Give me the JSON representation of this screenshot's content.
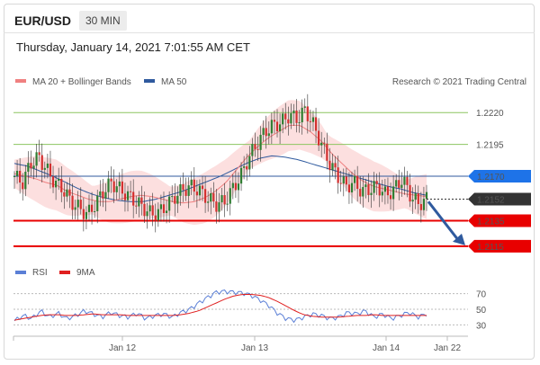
{
  "header": {
    "symbol": "EUR/USD",
    "interval": "30 MIN",
    "timestamp": "Thursday, January 14, 2021 7:01:55 AM CET"
  },
  "legend": {
    "ma20": "MA 20 + Bollinger Bands",
    "ma50": "MA 50",
    "credit": "Research © 2021 Trading Central"
  },
  "colors": {
    "ma20": "#f08080",
    "ma50": "#2f5a9e",
    "support": "#e80000",
    "resistance_green": "#8cc560",
    "bullish": "#2e7d32",
    "bearish": "#d32f2f",
    "current": "#333333",
    "rsi": "#5b7fd6",
    "rsi_ma": "#e02020"
  },
  "chart_data": [
    {
      "type": "line",
      "title": "EUR/USD 30 MIN",
      "x_ticks": [
        "Jan 12",
        "Jan 13",
        "Jan 14",
        "Jan 22"
      ],
      "ylim": [
        1.2105,
        1.2235
      ],
      "levels": [
        {
          "value": 1.222,
          "label": "1.2220",
          "style": "green-line"
        },
        {
          "value": 1.2195,
          "label": "1.2195",
          "style": "green-line"
        },
        {
          "value": 1.217,
          "label": "1.2170",
          "style": "blue-marker"
        },
        {
          "value": 1.2152,
          "label": "1.2152",
          "style": "current-price"
        },
        {
          "value": 1.2135,
          "label": "1.2135",
          "style": "red-line"
        },
        {
          "value": 1.2115,
          "label": "1.2115",
          "style": "red-line"
        }
      ],
      "price_path": [
        1.217,
        1.2165,
        1.218,
        1.2185,
        1.2175,
        1.2165,
        1.216,
        1.215,
        1.2145,
        1.214,
        1.2148,
        1.2158,
        1.2165,
        1.216,
        1.2155,
        1.215,
        1.2145,
        1.214,
        1.2142,
        1.2148,
        1.2155,
        1.216,
        1.2162,
        1.2158,
        1.2152,
        1.2148,
        1.215,
        1.216,
        1.217,
        1.2185,
        1.2195,
        1.2205,
        1.221,
        1.2212,
        1.2218,
        1.2215,
        1.2222,
        1.221,
        1.2195,
        1.218,
        1.217,
        1.2162,
        1.2165,
        1.2158,
        1.216,
        1.2162,
        1.2155,
        1.216,
        1.2168,
        1.2155,
        1.2148,
        1.2152
      ],
      "ma20_path": [
        1.2172,
        1.217,
        1.2168,
        1.2165,
        1.2163,
        1.2158,
        1.2155,
        1.2152,
        1.215,
        1.215,
        1.2152,
        1.2154,
        1.2155,
        1.2154,
        1.2152,
        1.215,
        1.2149,
        1.215,
        1.2153,
        1.2158,
        1.2165,
        1.2175,
        1.2185,
        1.2193,
        1.22,
        1.2205,
        1.221,
        1.221,
        1.2205,
        1.2198,
        1.2188,
        1.218,
        1.2172,
        1.2166,
        1.2162,
        1.216,
        1.2158,
        1.2156,
        1.2155,
        1.2154
      ],
      "ma50_path": [
        1.218,
        1.2178,
        1.2174,
        1.217,
        1.2165,
        1.216,
        1.2156,
        1.2153,
        1.2151,
        1.215,
        1.215,
        1.2152,
        1.2155,
        1.2158,
        1.2162,
        1.2166,
        1.217,
        1.2175,
        1.218,
        1.2184,
        1.2186,
        1.2185,
        1.2183,
        1.218,
        1.2177,
        1.2174,
        1.2171,
        1.2168,
        1.2165,
        1.2162,
        1.216,
        1.2157,
        1.2155
      ],
      "forecast_target": 1.2115
    },
    {
      "type": "line",
      "legend": [
        "RSI",
        "9MA"
      ],
      "y_ticks": [
        70,
        50,
        30
      ],
      "ylim": [
        20,
        80
      ],
      "series": [
        {
          "name": "RSI",
          "values": [
            35,
            42,
            38,
            48,
            40,
            45,
            38,
            42,
            48,
            44,
            40,
            46,
            42,
            40,
            45,
            38,
            42,
            44,
            40,
            46,
            50,
            58,
            65,
            72,
            73,
            72,
            71,
            68,
            62,
            55,
            45,
            38,
            36,
            40,
            44,
            42,
            38,
            40,
            46,
            44,
            48,
            40,
            44,
            38,
            42,
            46,
            40,
            44
          ]
        },
        {
          "name": "9MA",
          "values": [
            36,
            38,
            40,
            42,
            43,
            43,
            42,
            42,
            43,
            44,
            43,
            43,
            43,
            42,
            42,
            42,
            42,
            42,
            42,
            43,
            45,
            48,
            53,
            58,
            63,
            67,
            69,
            69,
            68,
            65,
            60,
            54,
            48,
            43,
            41,
            40,
            40,
            40,
            41,
            42,
            42,
            43,
            42,
            42,
            42,
            42,
            42,
            42
          ]
        }
      ]
    }
  ]
}
